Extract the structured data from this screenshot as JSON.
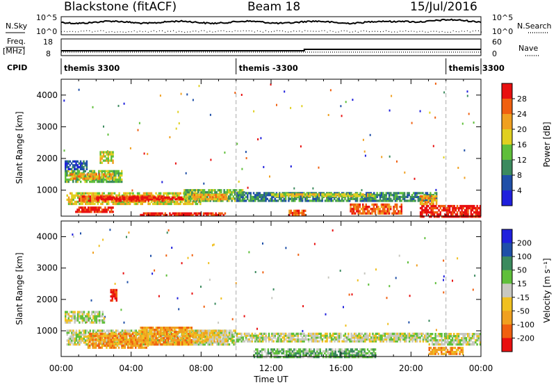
{
  "header": {
    "station": "Blackstone (fitACF)",
    "beam": "Beam 18",
    "date": "15/Jul/2016"
  },
  "top_panels": {
    "nsky_label": "N.Sky",
    "nsky_ticks": [
      "10^5",
      "10^0"
    ],
    "nsearch_label": "N.Search",
    "nsearch_ticks": [
      "10^5",
      "10^0"
    ],
    "freq_label": "Freq.",
    "freq_unit": "[MHz]",
    "freq_ticks": [
      "18",
      "8"
    ],
    "nave_label": "Nave",
    "nave_ticks": [
      "60",
      "0"
    ],
    "cpid_label": "CPID",
    "cpid_segments": [
      {
        "label": "themis 3300",
        "start_hour": 0.0,
        "end_hour": 10.0
      },
      {
        "label": "themis -3300",
        "start_hour": 10.0,
        "end_hour": 22.0
      },
      {
        "label": "themis 3300",
        "start_hour": 22.0,
        "end_hour": 24.0
      }
    ]
  },
  "chart_data": [
    {
      "type": "heatmap",
      "panel": "power",
      "ylabel": "Slant Range [km]",
      "yticks": [
        "1000",
        "2000",
        "3000",
        "4000"
      ],
      "ylim": [
        180,
        4500
      ],
      "xlim": [
        0,
        24
      ],
      "colorbar_label": "Power [dB]",
      "colorbar_ticks": [
        "4",
        "8",
        "12",
        "16",
        "20",
        "24",
        "28"
      ],
      "colorbar_colors": [
        "#1f1fdc",
        "#1f4fa8",
        "#3b8a5e",
        "#5fbf3a",
        "#e0d020",
        "#f0a020",
        "#f06010",
        "#e81010"
      ],
      "regions": [
        {
          "t0": 0.2,
          "t1": 3.5,
          "r0": 1300,
          "r1": 1700,
          "level": 3
        },
        {
          "t0": 0.5,
          "t1": 3.0,
          "r0": 1400,
          "r1": 1600,
          "level": 5
        },
        {
          "t0": 0.3,
          "t1": 8.0,
          "r0": 600,
          "r1": 1000,
          "level": 4
        },
        {
          "t0": 1.0,
          "t1": 6.0,
          "r0": 700,
          "r1": 900,
          "level": 6
        },
        {
          "t0": 2.0,
          "t1": 7.0,
          "r0": 750,
          "r1": 850,
          "level": 7
        },
        {
          "t0": 0.8,
          "t1": 3.0,
          "r0": 350,
          "r1": 550,
          "level": 7
        },
        {
          "t0": 4.5,
          "t1": 9.5,
          "r0": 250,
          "r1": 350,
          "level": 7
        },
        {
          "t0": 7.0,
          "t1": 10.5,
          "r0": 700,
          "r1": 1100,
          "level": 3
        },
        {
          "t0": 7.5,
          "t1": 9.5,
          "r0": 750,
          "r1": 950,
          "level": 5
        },
        {
          "t0": 10.0,
          "t1": 21.5,
          "r0": 700,
          "r1": 1000,
          "level": 2
        },
        {
          "t0": 12.0,
          "t1": 18.0,
          "r0": 850,
          "r1": 950,
          "level": 4
        },
        {
          "t0": 16.5,
          "t1": 19.5,
          "r0": 300,
          "r1": 650,
          "level": 6
        },
        {
          "t0": 13.0,
          "t1": 14.0,
          "r0": 250,
          "r1": 450,
          "level": 6
        },
        {
          "t0": 20.5,
          "t1": 24.0,
          "r0": 200,
          "r1": 600,
          "level": 7
        },
        {
          "t0": 20.5,
          "t1": 21.5,
          "r0": 600,
          "r1": 900,
          "level": 5
        },
        {
          "t0": 2.2,
          "t1": 3.0,
          "r0": 1900,
          "r1": 2300,
          "level": 4
        },
        {
          "t0": 0.2,
          "t1": 1.5,
          "r0": 1700,
          "r1": 2000,
          "level": 1
        }
      ]
    },
    {
      "type": "heatmap",
      "panel": "velocity",
      "ylabel": "Slant Range [km]",
      "yticks": [
        "1000",
        "2000",
        "3000",
        "4000"
      ],
      "ylim": [
        180,
        4500
      ],
      "xlim": [
        0,
        24
      ],
      "xticks": [
        "00:00",
        "04:00",
        "08:00",
        "12:00",
        "16:00",
        "20:00",
        "00:00"
      ],
      "xlabel": "Time UT",
      "colorbar_label": "Velocity [m s⁻¹]",
      "colorbar_ticks": [
        "200",
        "100",
        "50",
        "15",
        "-15",
        "-50",
        "-100",
        "-200"
      ],
      "colorbar_colors": [
        "#1f1fdc",
        "#1f4fa8",
        "#3b8a5e",
        "#5fbf3a",
        "#c8c8c0",
        "#f0c020",
        "#f0a020",
        "#f06010",
        "#e81010"
      ],
      "regions": [
        {
          "t0": 0.2,
          "t1": 2.5,
          "r0": 1300,
          "r1": 1700,
          "level": 4
        },
        {
          "t0": 0.3,
          "t1": 10.0,
          "r0": 600,
          "r1": 1100,
          "level": 4
        },
        {
          "t0": 1.5,
          "t1": 5.0,
          "r0": 500,
          "r1": 1000,
          "level": 6
        },
        {
          "t0": 4.5,
          "t1": 7.5,
          "r0": 600,
          "r1": 1200,
          "level": 6
        },
        {
          "t0": 7.5,
          "t1": 9.5,
          "r0": 700,
          "r1": 1100,
          "level": 5
        },
        {
          "t0": 2.8,
          "t1": 3.2,
          "r0": 2000,
          "r1": 2400,
          "level": 8
        },
        {
          "t0": 10.0,
          "t1": 21.0,
          "r0": 700,
          "r1": 1000,
          "level": 4
        },
        {
          "t0": 11.0,
          "t1": 18.0,
          "r0": 200,
          "r1": 500,
          "level": 3
        },
        {
          "t0": 21.0,
          "t1": 24.0,
          "r0": 600,
          "r1": 1000,
          "level": 4
        },
        {
          "t0": 21.0,
          "t1": 23.0,
          "r0": 300,
          "r1": 550,
          "level": 6
        }
      ]
    }
  ]
}
